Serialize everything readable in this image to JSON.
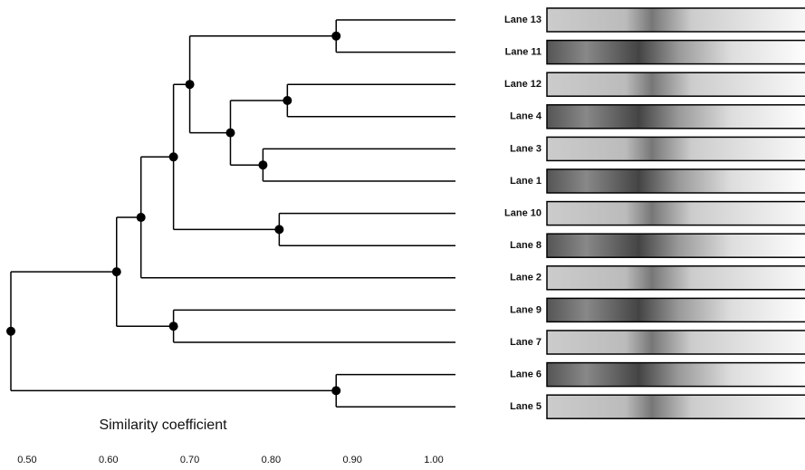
{
  "chart_data": {
    "type": "dendrogram",
    "xlabel": "Similarity coefficient",
    "leaves": [
      "Lane 13",
      "Lane 11",
      "Lane 12",
      "Lane 4",
      "Lane 3",
      "Lane 1",
      "Lane 10",
      "Lane 8",
      "Lane 2",
      "Lane 9",
      "Lane 7",
      "Lane 6",
      "Lane 5"
    ],
    "nodes": [
      {
        "children": [
          0,
          1
        ],
        "similarity": 0.88
      },
      {
        "children": [
          2,
          3
        ],
        "similarity": 0.82
      },
      {
        "children": [
          4,
          5
        ],
        "similarity": 0.79
      },
      {
        "children": [
          14,
          15
        ],
        "similarity": 0.75
      },
      {
        "children": [
          13,
          16
        ],
        "similarity": 0.7
      },
      {
        "children": [
          6,
          7
        ],
        "similarity": 0.81
      },
      {
        "children": [
          17,
          18
        ],
        "similarity": 0.68
      },
      {
        "children": [
          19,
          8
        ],
        "similarity": 0.64
      },
      {
        "children": [
          9,
          10
        ],
        "similarity": 0.68
      },
      {
        "children": [
          20,
          21
        ],
        "similarity": 0.61
      },
      {
        "children": [
          11,
          12
        ],
        "similarity": 0.88
      },
      {
        "children": [
          22,
          23
        ],
        "similarity": 0.48
      }
    ],
    "xlim": [
      0.48,
      1.0
    ],
    "xticks": [
      {
        "value": 0.5,
        "label": "0.50"
      },
      {
        "value": 0.6,
        "label": "0.60"
      },
      {
        "value": 0.7,
        "label": "0.70"
      },
      {
        "value": 0.8,
        "label": "0.80"
      },
      {
        "value": 0.9,
        "label": "0.90"
      },
      {
        "value": 1.0,
        "label": "1.00"
      }
    ],
    "color": "#000000"
  }
}
